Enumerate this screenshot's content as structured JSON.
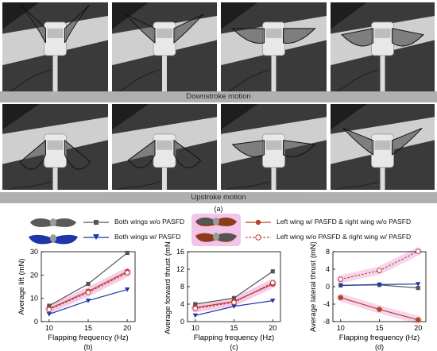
{
  "photo_captions": {
    "downstroke": "Downstroke motion",
    "upstroke": "Upstroke motion",
    "figure_label": "(a)"
  },
  "legend": {
    "s1": "Both wings w/o PASFD",
    "s2": "Both wings w/ PASFD",
    "s3": "Left wing w/ PASFD & right wing w/o PASFD",
    "s4": "Left wing w/o PASFD & right wing w/ PASFD"
  },
  "colors": {
    "s1": "#555555",
    "s2": "#1f35a8",
    "s3": "#b5452a",
    "s4": "#c0392b",
    "wing_gray": "#5a5a5a",
    "wing_blue": "#1f35a8",
    "wing_brown": "#8b3a1a",
    "highlight": "#f2c4e8"
  },
  "chart_data": [
    {
      "type": "line",
      "xlabel": "Flapping frequency (Hz)",
      "ylabel": "Average lift (mN)",
      "panel": "(b)",
      "xlim": [
        9,
        21
      ],
      "ylim": [
        0,
        30
      ],
      "xticks": [
        10,
        15,
        20
      ],
      "yticks": [
        0,
        10,
        20,
        30
      ],
      "x": [
        10,
        15,
        20
      ],
      "series": [
        {
          "name": "Both wings w/o PASFD",
          "values": [
            6.8,
            16.2,
            29.5
          ]
        },
        {
          "name": "Both wings w/ PASFD",
          "values": [
            3.2,
            9.0,
            13.8
          ]
        },
        {
          "name": "Left wing w/ PASFD & right wing w/o PASFD",
          "values": [
            5.5,
            13.0,
            21.5
          ]
        },
        {
          "name": "Left wing w/o PASFD & right wing w/ PASFD",
          "values": [
            5.2,
            12.5,
            21.0
          ]
        }
      ]
    },
    {
      "type": "line",
      "xlabel": "Flapping frequency (Hz)",
      "ylabel": "Average forward thrust (mN)",
      "panel": "(c)",
      "xlim": [
        9,
        21
      ],
      "ylim": [
        0,
        16
      ],
      "xticks": [
        10,
        15,
        20
      ],
      "yticks": [
        0,
        4,
        8,
        12,
        16
      ],
      "x": [
        10,
        15,
        20
      ],
      "series": [
        {
          "name": "Both wings w/o PASFD",
          "values": [
            4.0,
            5.4,
            11.5
          ]
        },
        {
          "name": "Both wings w/ PASFD",
          "values": [
            1.4,
            3.5,
            4.8
          ]
        },
        {
          "name": "Left wing w/ PASFD & right wing w/o PASFD",
          "values": [
            3.2,
            4.6,
            8.6
          ]
        },
        {
          "name": "Left wing w/o PASFD & right wing w/ PASFD",
          "values": [
            3.0,
            4.4,
            8.9
          ]
        }
      ]
    },
    {
      "type": "line",
      "xlabel": "Flapping frequency (Hz)",
      "ylabel": "Average lateral thrust (mN)",
      "panel": "(d)",
      "xlim": [
        9,
        21
      ],
      "ylim": [
        -8,
        8
      ],
      "xticks": [
        10,
        15,
        20
      ],
      "yticks": [
        -8,
        -4,
        0,
        4,
        8
      ],
      "x": [
        10,
        15,
        20
      ],
      "series": [
        {
          "name": "Both wings w/o PASFD",
          "values": [
            0.3,
            0.4,
            -0.3
          ]
        },
        {
          "name": "Both wings w/ PASFD",
          "values": [
            0.3,
            0.5,
            0.6
          ]
        },
        {
          "name": "Left wing w/ PASFD & right wing w/o PASFD",
          "values": [
            -2.5,
            -5.2,
            -7.6
          ]
        },
        {
          "name": "Left wing w/o PASFD & right wing w/ PASFD",
          "values": [
            1.7,
            3.7,
            8.1
          ]
        }
      ]
    }
  ]
}
